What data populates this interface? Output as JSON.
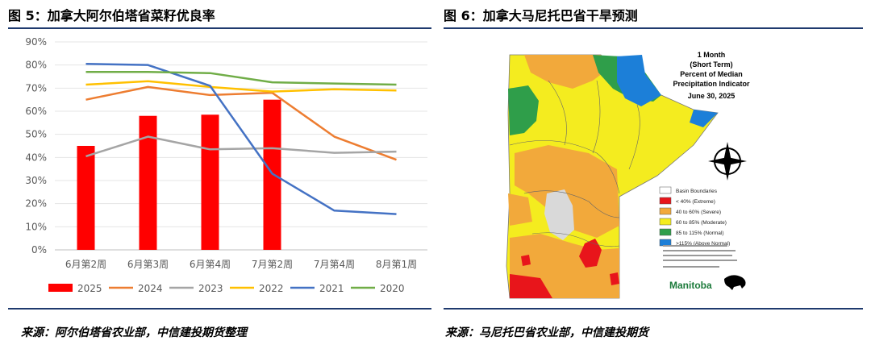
{
  "left_panel": {
    "title": "图 5：加拿大阿尔伯塔省菜籽优良率",
    "source": "来源：阿尔伯塔省农业部，中信建投期货整理"
  },
  "right_panel": {
    "title": "图 6：加拿大马尼托巴省干旱预测",
    "source": "来源：马尼托巴省农业部，中信建投期货",
    "map": {
      "title_lines": [
        "1 Month",
        "(Short Term)",
        "Percent of Median",
        "Precipitation Indicator",
        "June 30, 2025"
      ],
      "legend": [
        {
          "label": "Basin Boundaries",
          "color": "#ffffff"
        },
        {
          "label": "< 40% (Extreme)",
          "color": "#e8151b"
        },
        {
          "label": "40 to 60% (Severe)",
          "color": "#f2a93b"
        },
        {
          "label": "60 to 85% (Moderate)",
          "color": "#f4ec1f"
        },
        {
          "label": "85 to 115% (Normal)",
          "color": "#2f9e4a"
        },
        {
          "label": ">115% (Above Normal)",
          "color": "#1c7fd8"
        }
      ],
      "logo_text": "Manitoba",
      "colors": {
        "extreme": "#e8151b",
        "severe": "#f2a93b",
        "moderate": "#f4ec1f",
        "normal": "#2f9e4a",
        "above": "#1c7fd8",
        "gray": "#d9d9d9"
      }
    }
  },
  "chart_data": {
    "type": "bar+line",
    "title": "",
    "xlabel": "",
    "ylabel": "",
    "categories": [
      "6月第2周",
      "6月第3周",
      "6月第4周",
      "7月第2周",
      "7月第4周",
      "8月第1周"
    ],
    "ylim": [
      0,
      90
    ],
    "yticks": [
      "0%",
      "10%",
      "20%",
      "30%",
      "40%",
      "50%",
      "60%",
      "70%",
      "80%",
      "90%"
    ],
    "grid": true,
    "legend_position": "bottom",
    "series": [
      {
        "name": "2025",
        "type": "bar",
        "color": "#ff0000",
        "values": [
          45,
          58,
          58.5,
          65,
          null,
          null
        ]
      },
      {
        "name": "2024",
        "type": "line",
        "color": "#ed7d31",
        "values": [
          65,
          70.5,
          67,
          68,
          49,
          39
        ]
      },
      {
        "name": "2023",
        "type": "line",
        "color": "#a5a5a5",
        "values": [
          40.5,
          49,
          43.5,
          44,
          42,
          42.5
        ]
      },
      {
        "name": "2022",
        "type": "line",
        "color": "#ffc000",
        "values": [
          71.5,
          73,
          70.5,
          68.5,
          69.5,
          69
        ]
      },
      {
        "name": "2021",
        "type": "line",
        "color": "#4472c4",
        "values": [
          80.5,
          80,
          71,
          33,
          17,
          15.5
        ]
      },
      {
        "name": "2020",
        "type": "line",
        "color": "#70ad47",
        "values": [
          77,
          77,
          76.5,
          72.5,
          72,
          71.5
        ]
      }
    ]
  }
}
